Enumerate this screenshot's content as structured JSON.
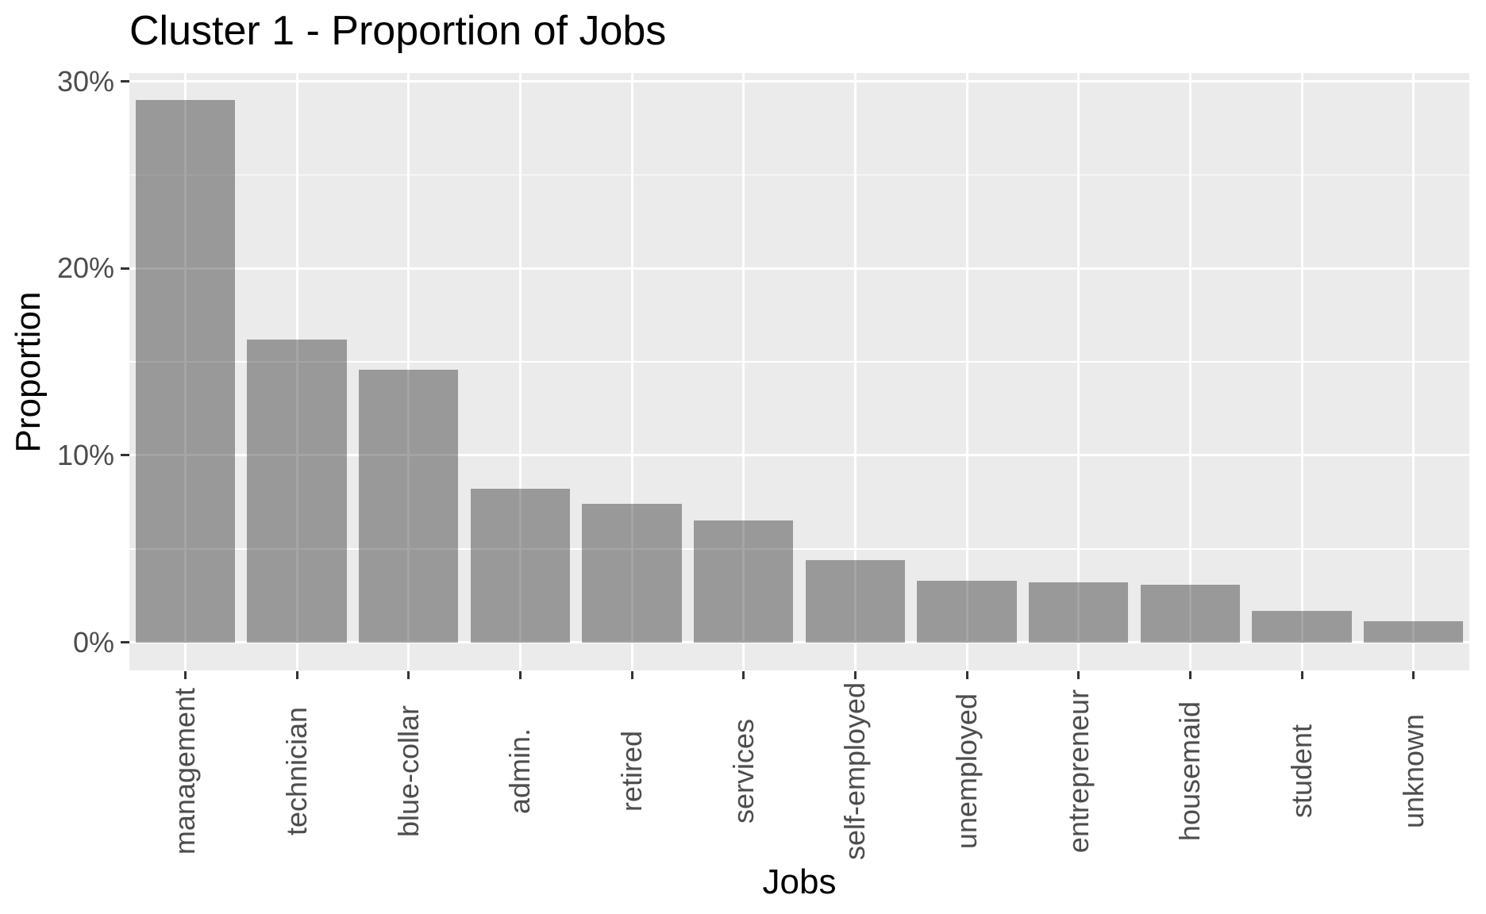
{
  "chart_data": {
    "type": "bar",
    "title": "Cluster 1 - Proportion of Jobs",
    "xlabel": "Jobs",
    "ylabel": "Proportion",
    "categories": [
      "management",
      "technician",
      "blue-collar",
      "admin.",
      "retired",
      "services",
      "self-employed",
      "unemployed",
      "entrepreneur",
      "housemaid",
      "student",
      "unknown"
    ],
    "values": [
      29.0,
      16.2,
      14.6,
      8.2,
      7.4,
      6.5,
      4.4,
      3.3,
      3.2,
      3.1,
      1.7,
      1.15
    ],
    "y_tick_values": [
      0,
      10,
      20,
      30
    ],
    "y_tick_labels": [
      "0%",
      "10%",
      "20%",
      "30%"
    ],
    "y_minor_values": [
      5,
      15,
      25
    ],
    "ylim": [
      -1.5,
      30.45
    ],
    "grid": "white major and minor gridlines on gray panel",
    "legend_position": "none",
    "colors": {
      "bar_fill_rendered": "#999999",
      "panel_background": "#EBEBEB",
      "gridline": "#FFFFFF",
      "tick_mark": "#333333",
      "axis_text": "#4D4D4D",
      "title_text": "#000000",
      "plot_background": "#FFFFFF"
    }
  }
}
